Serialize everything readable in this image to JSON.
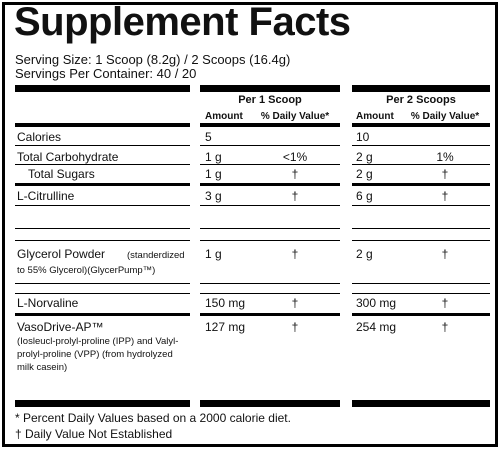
{
  "title": "Supplement Facts",
  "serving_size": "Serving Size: 1 Scoop (8.2g) / 2 Scoops (16.4g)",
  "servings_per_container": "Servings Per Container: 40 / 20",
  "columns": [
    {
      "header": "Per 1 Scoop",
      "amount": "Amount",
      "dv": "% Daily Value*"
    },
    {
      "header": "Per 2 Scoops",
      "amount": "Amount",
      "dv": "% Daily Value*"
    }
  ],
  "rows": [
    {
      "name": "Calories",
      "amounts": [
        "5",
        "10"
      ]
    },
    {
      "name": "Total Carbohydrate",
      "amounts": [
        "1 g",
        "2 g"
      ],
      "dv": [
        "<1%",
        "1%"
      ]
    },
    {
      "name": "Total Sugars",
      "amounts": [
        "1 g",
        "2 g"
      ],
      "dv": [
        "†",
        "†"
      ]
    },
    {
      "name": "L-Citrulline",
      "amounts": [
        "3 g",
        "6 g"
      ],
      "dv": [
        "†",
        "†"
      ]
    },
    {
      "name": "Glycerol Powder",
      "detail": "(standerdized to 55% Glycerol)(GlycerPump™)",
      "amounts": [
        "1 g",
        "2 g"
      ],
      "dv": [
        "†",
        "†"
      ]
    },
    {
      "name": "L-Norvaline",
      "amounts": [
        "150 mg",
        "300 mg"
      ],
      "dv": [
        "†",
        "†"
      ]
    },
    {
      "name": "VasoDrive-AP™",
      "detail": "(Iosleucl-prolyl-proline (IPP) and Valyl-prolyl-proline (VPP) (from hydrolyzed milk casein)",
      "amounts": [
        "127 mg",
        "254 mg"
      ],
      "dv": [
        "†",
        "†"
      ]
    }
  ],
  "footnotes": [
    "* Percent Daily Values based on a 2000 calorie diet.",
    "† Daily Value Not Established"
  ]
}
